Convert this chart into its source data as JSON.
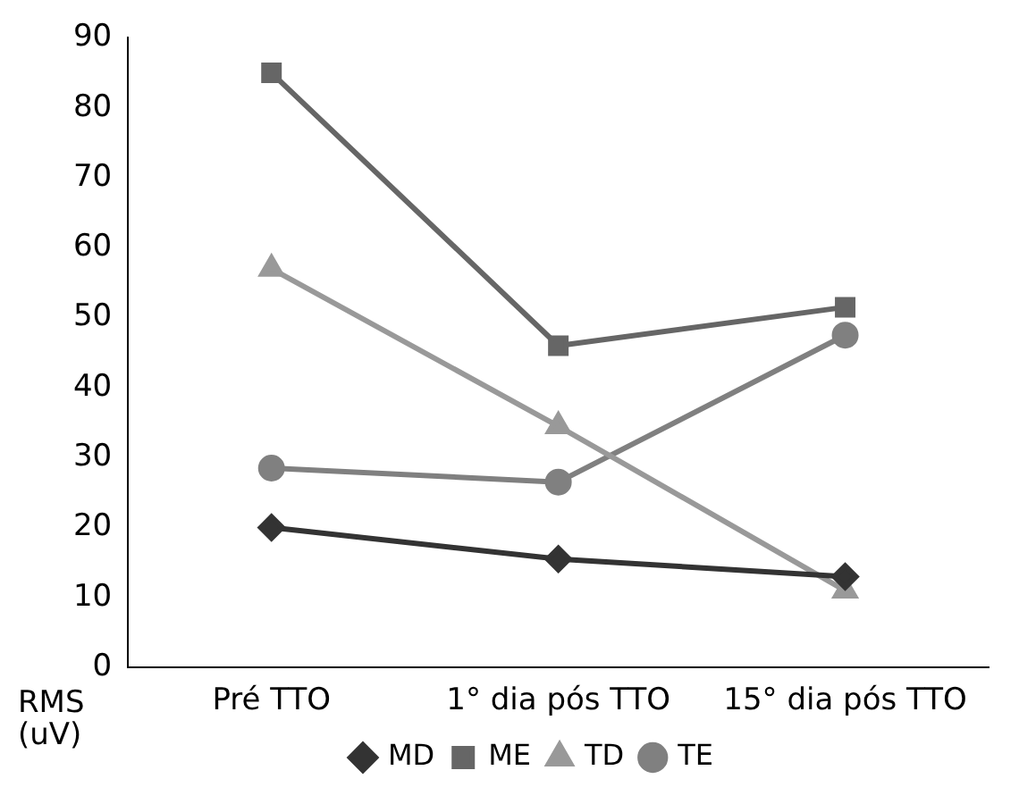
{
  "chart_data": {
    "type": "line",
    "ylabel": "RMS (uV)",
    "categories": [
      "Pré TTO",
      "1° dia pós TTO",
      "15° dia pós TTO"
    ],
    "series": [
      {
        "name": "MD",
        "color": "#333333",
        "marker": "diamond",
        "values": [
          20,
          15.5,
          13
        ]
      },
      {
        "name": "ME",
        "color": "#666666",
        "marker": "square",
        "values": [
          85,
          46,
          51.5
        ]
      },
      {
        "name": "TD",
        "color": "#999999",
        "marker": "triangle",
        "values": [
          57,
          34.5,
          11
        ]
      },
      {
        "name": "TE",
        "color": "#808080",
        "marker": "circle",
        "values": [
          28.5,
          26.5,
          47.5
        ]
      }
    ],
    "ylim": [
      0,
      90
    ],
    "yticks": [
      0,
      10,
      20,
      30,
      40,
      50,
      60,
      70,
      80,
      90
    ],
    "grid": false,
    "legend": "bottom"
  }
}
